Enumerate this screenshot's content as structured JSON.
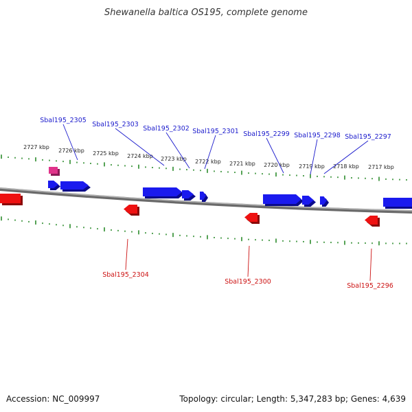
{
  "title": "Shewanella baltica OS195, complete genome",
  "footer": {
    "accession": "Accession: NC_009997",
    "summary": "Topology: circular; Length: 5,347,283 bp; Genes: 4,639"
  },
  "colors": {
    "forward_gene": "#1a1aee",
    "reverse_gene": "#ee1111",
    "rna_gene": "#e0338a",
    "tick": "#2a8a2a",
    "genome_line": "#888888",
    "forward_label": "#1a1acc",
    "reverse_label": "#cc1111"
  },
  "scale_labels": [
    "2727 kbp",
    "2726 kbp",
    "2725 kbp",
    "2724 kbp",
    "2723 kbp",
    "2722 kbp",
    "2721 kbp",
    "2720 kbp",
    "2719 kbp",
    "2718 kbp",
    "2717 kbp"
  ],
  "forward_gene_labels": [
    "Sbal195_2305",
    "Sbal195_2303",
    "Sbal195_2302",
    "Sbal195_2301",
    "Sbal195_2299",
    "Sbal195_2298",
    "Sbal195_2297"
  ],
  "reverse_gene_labels": [
    "Sbal195_2304",
    "Sbal195_2300",
    "Sbal195_2296"
  ]
}
